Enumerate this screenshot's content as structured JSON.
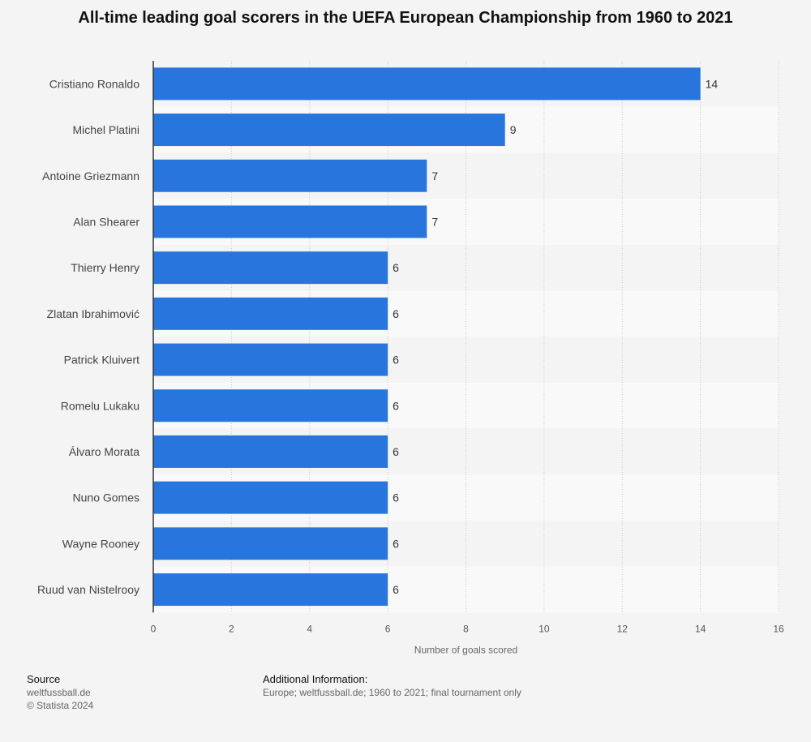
{
  "chart_data": {
    "type": "bar",
    "orientation": "horizontal",
    "title": "All-time leading goal scorers in the UEFA European Championship from 1960 to 2021",
    "categories": [
      "Cristiano Ronaldo",
      "Michel Platini",
      "Antoine Griezmann",
      "Alan Shearer",
      "Thierry Henry",
      "Zlatan Ibrahimović",
      "Patrick Kluivert",
      "Romelu Lukaku",
      "Álvaro Morata",
      "Nuno Gomes",
      "Wayne Rooney",
      "Ruud van Nistelrooy"
    ],
    "values": [
      14,
      9,
      7,
      7,
      6,
      6,
      6,
      6,
      6,
      6,
      6,
      6
    ],
    "xlabel": "Number of goals scored",
    "ylabel": "",
    "xlim": [
      0,
      16
    ],
    "xticks": [
      0,
      2,
      4,
      6,
      8,
      10,
      12,
      14,
      16
    ],
    "grid": true,
    "bar_color": "#2876dd"
  },
  "footer": {
    "source_heading": "Source",
    "source_lines": [
      "weltfussball.de",
      "© Statista 2024"
    ],
    "info_heading": "Additional Information:",
    "info_text": "Europe; weltfussball.de; 1960 to 2021; final tournament only"
  }
}
